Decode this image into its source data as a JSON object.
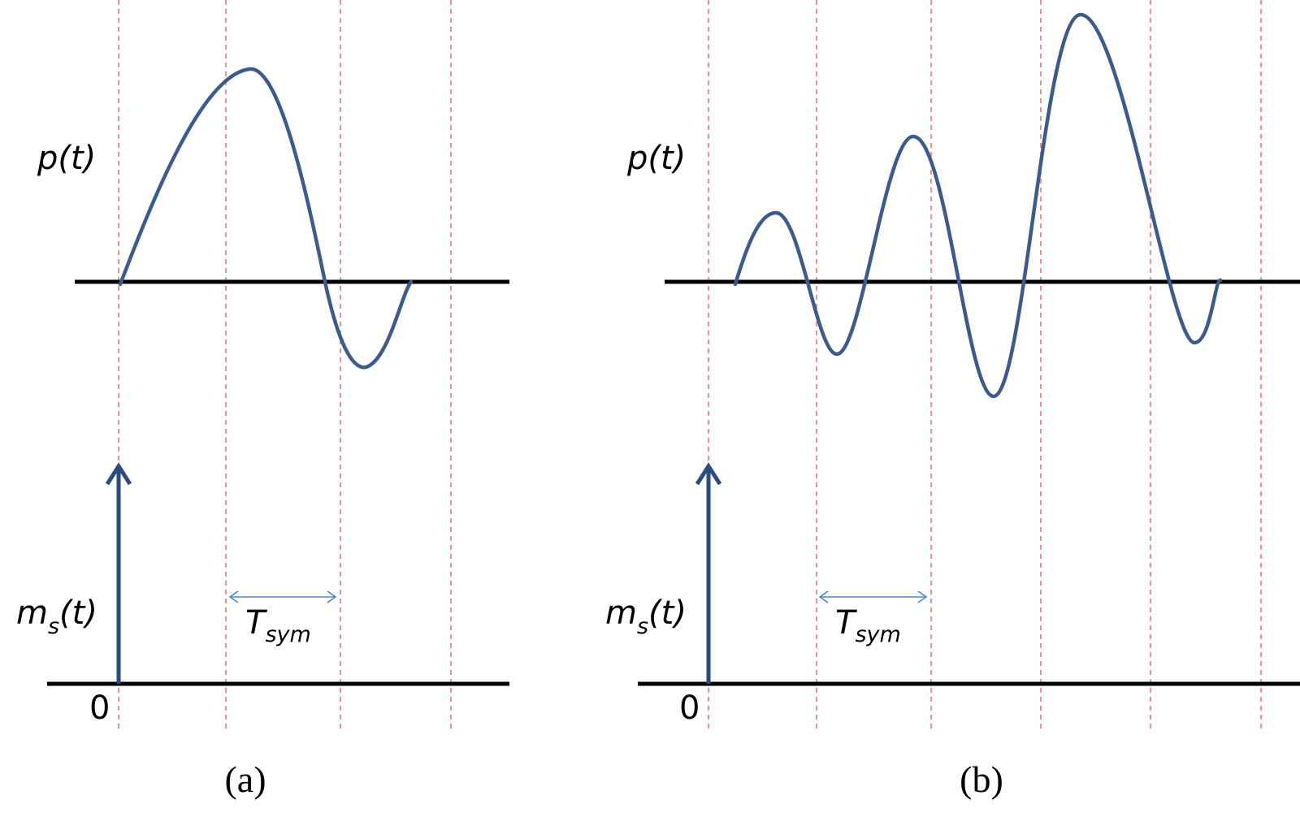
{
  "panels": [
    {
      "signal": {
        "base": "p",
        "arg": "(t)"
      },
      "impulse": {
        "base": "m",
        "sub": "s",
        "arg": "(t)"
      },
      "period": {
        "base": "T",
        "sub": "sym"
      },
      "origin": "0",
      "caption": "(a)"
    },
    {
      "signal": {
        "base": "p",
        "arg": "(t)"
      },
      "impulse": {
        "base": "m",
        "sub": "s",
        "arg": "(t)"
      },
      "period": {
        "base": "T",
        "sub": "sym"
      },
      "origin": "0",
      "caption": "(b)"
    }
  ]
}
